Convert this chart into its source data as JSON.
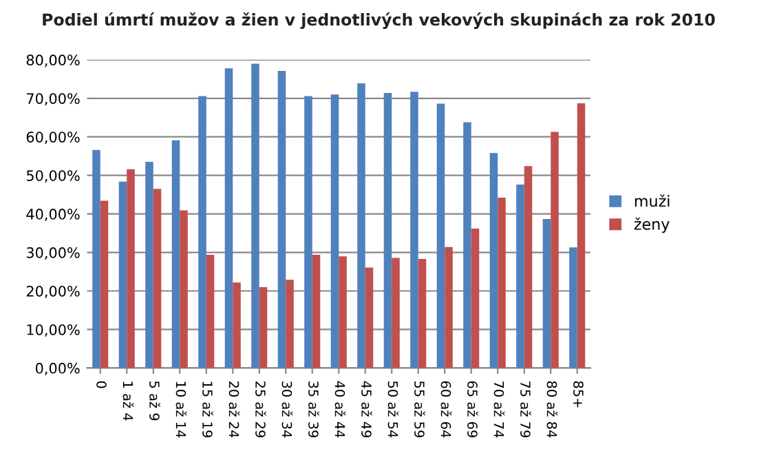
{
  "chart_data": {
    "type": "bar",
    "title": "Podiel úmrtí mužov a žien v jednotlivých vekových skupinách za rok 2010",
    "categories": [
      "0",
      "1 až 4",
      "5 až 9",
      "10 až 14",
      "15 až 19",
      "20 až 24",
      "25 až 29",
      "30 až 34",
      "35 až 39",
      "40 až 44",
      "45 až 49",
      "50 až 54",
      "55 až 59",
      "60 až 64",
      "65 až 69",
      "70 až 74",
      "75 až 79",
      "80 až 84",
      "85+"
    ],
    "series": [
      {
        "name": "muži",
        "color": "#4f81bd",
        "values": [
          56.6,
          48.4,
          53.5,
          59.1,
          70.6,
          77.8,
          79.0,
          77.1,
          70.6,
          71.0,
          73.9,
          71.4,
          71.7,
          68.6,
          63.8,
          55.8,
          47.6,
          38.7,
          31.3
        ]
      },
      {
        "name": "ženy",
        "color": "#c0504d",
        "values": [
          43.4,
          51.6,
          46.5,
          40.9,
          29.4,
          22.2,
          21.0,
          22.9,
          29.4,
          29.0,
          26.1,
          28.6,
          28.3,
          31.4,
          36.2,
          44.2,
          52.4,
          61.3,
          68.7
        ]
      }
    ],
    "ylim": [
      0,
      80
    ],
    "yticks": [
      {
        "value": 0,
        "label": "0,00%"
      },
      {
        "value": 10,
        "label": "10,00%"
      },
      {
        "value": 20,
        "label": "20,00%"
      },
      {
        "value": 30,
        "label": "30,00%"
      },
      {
        "value": 40,
        "label": "40,00%"
      },
      {
        "value": 50,
        "label": "50,00%"
      },
      {
        "value": 60,
        "label": "60,00%"
      },
      {
        "value": 70,
        "label": "70,00%"
      },
      {
        "value": 80,
        "label": "80,00%"
      }
    ],
    "grid": "y",
    "legend": "right"
  }
}
